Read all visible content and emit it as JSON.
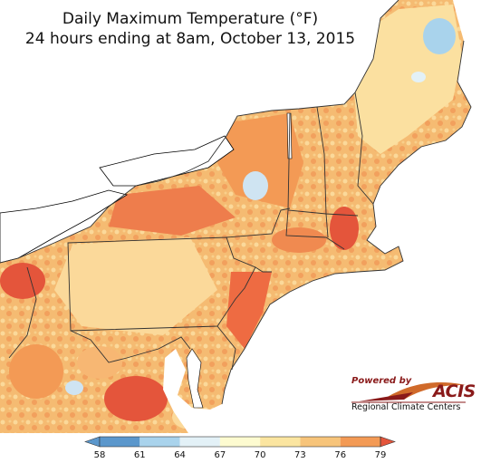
{
  "title": {
    "line1": "Daily Maximum Temperature (°F)",
    "line2": "24 hours ending at 8am, October 13, 2015"
  },
  "logo": {
    "powered_by": "Powered by",
    "acis": "ACIS",
    "subtitle": "Regional Climate Centers"
  },
  "legend": {
    "ticks": [
      "58",
      "61",
      "64",
      "67",
      "70",
      "73",
      "76",
      "79"
    ],
    "colors": [
      "#5b97cc",
      "#a9d3ec",
      "#e3f1f7",
      "#fdfbd0",
      "#fbe5a0",
      "#f7c47a",
      "#f39a55",
      "#e4553b"
    ]
  },
  "colors": {
    "land_warm": "#f7c47a",
    "land_hot": "#ef7a45",
    "land_mild": "#fbe5a0",
    "land_cool": "#cfe4f2",
    "water": "#ffffff",
    "land_outside": "#ffffff"
  }
}
